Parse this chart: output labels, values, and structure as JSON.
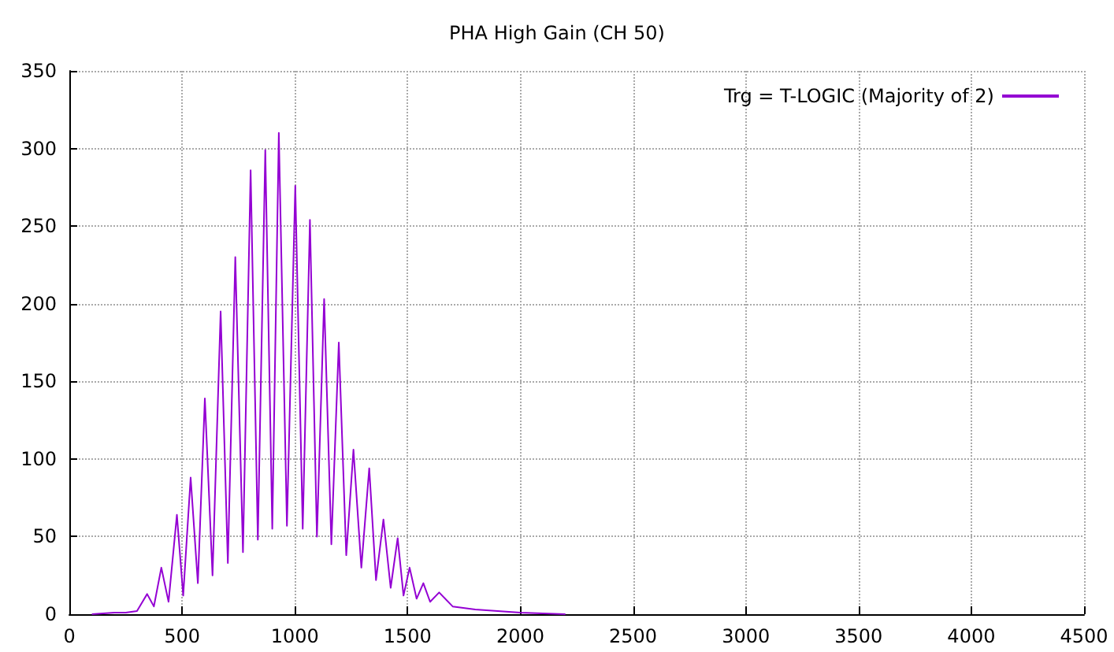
{
  "chart_data": {
    "type": "line",
    "title": "PHA High Gain (CH 50)",
    "series": [
      {
        "name": "Trg = T-LOGIC (Majority of 2)",
        "color": "#9400d3",
        "x": [
          100,
          200,
          250,
          300,
          345,
          375,
          408,
          440,
          477,
          505,
          538,
          570,
          601,
          635,
          671,
          703,
          736,
          770,
          804,
          836,
          869,
          900,
          929,
          965,
          1002,
          1035,
          1067,
          1098,
          1130,
          1162,
          1195,
          1228,
          1260,
          1295,
          1330,
          1360,
          1393,
          1425,
          1456,
          1482,
          1509,
          1540,
          1570,
          1600,
          1640,
          1700,
          1800,
          1900,
          2000,
          2100,
          2200
        ],
        "values": [
          0,
          1,
          1,
          2,
          13,
          5,
          30,
          8,
          64,
          12,
          88,
          20,
          139,
          25,
          195,
          33,
          230,
          40,
          286,
          48,
          299,
          55,
          310,
          57,
          276,
          55,
          254,
          50,
          203,
          45,
          175,
          38,
          106,
          30,
          94,
          22,
          61,
          17,
          49,
          12,
          30,
          10,
          20,
          8,
          14,
          5,
          3,
          2,
          1,
          0.5,
          0
        ]
      }
    ],
    "xlim": [
      0,
      4500
    ],
    "xticks": [
      0,
      500,
      1000,
      1500,
      2000,
      2500,
      3000,
      3500,
      4000,
      4500
    ],
    "ylim": [
      0,
      350
    ],
    "yticks": [
      0,
      50,
      100,
      150,
      200,
      250,
      300,
      350
    ],
    "grid": true,
    "legend": "top right",
    "marker": "none",
    "line_style": "solid"
  }
}
